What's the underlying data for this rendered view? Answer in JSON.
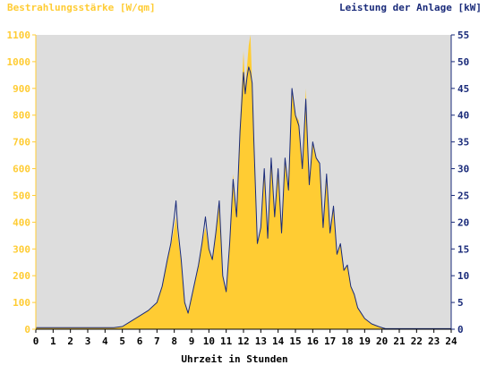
{
  "chart_data": {
    "type": "area",
    "left_axis_label": "Bestrahlungsstärke [W/qm]",
    "right_axis_label": "Leistung der Anlage [kW]",
    "xlabel": "Uhrzeit in Stunden",
    "x_ticks": [
      "0",
      "1",
      "2",
      "3",
      "4",
      "5",
      "6",
      "7",
      "8",
      "9",
      "10",
      "11",
      "12",
      "13",
      "14",
      "15",
      "16",
      "17",
      "18",
      "19",
      "20",
      "21",
      "22",
      "23",
      "24"
    ],
    "y_left_ticks": [
      "0",
      "100",
      "200",
      "300",
      "400",
      "500",
      "600",
      "700",
      "800",
      "900",
      "1000",
      "1100"
    ],
    "y_right_ticks": [
      "0",
      "5",
      "10",
      "15",
      "20",
      "25",
      "30",
      "35",
      "40",
      "45",
      "50",
      "55"
    ],
    "xlim": [
      0,
      24
    ],
    "ylim_left": [
      0,
      1100
    ],
    "ylim_right": [
      0,
      55
    ],
    "grid": false,
    "series": [
      {
        "name": "Bestrahlungsstärke",
        "axis": "left",
        "style": "filled-area",
        "color": "#ffcc33",
        "x": [
          0,
          4.5,
          5,
          5.5,
          6,
          6.5,
          7,
          7.3,
          7.6,
          7.8,
          8.0,
          8.1,
          8.2,
          8.4,
          8.6,
          8.8,
          9.0,
          9.2,
          9.4,
          9.6,
          9.8,
          10.0,
          10.2,
          10.4,
          10.6,
          10.8,
          11.0,
          11.2,
          11.4,
          11.6,
          11.8,
          12.0,
          12.1,
          12.2,
          12.3,
          12.4,
          12.5,
          12.6,
          12.8,
          13.0,
          13.2,
          13.4,
          13.6,
          13.8,
          14.0,
          14.2,
          14.4,
          14.6,
          14.8,
          15.0,
          15.2,
          15.4,
          15.6,
          15.8,
          16.0,
          16.2,
          16.4,
          16.6,
          16.8,
          17.0,
          17.2,
          17.4,
          17.6,
          17.8,
          18.0,
          18.2,
          18.4,
          18.6,
          18.8,
          19.0,
          19.4,
          19.8,
          20.0,
          20.2,
          24
        ],
        "y": [
          5,
          5,
          10,
          30,
          50,
          70,
          100,
          160,
          260,
          310,
          380,
          420,
          350,
          250,
          100,
          60,
          120,
          180,
          240,
          320,
          380,
          300,
          260,
          360,
          480,
          200,
          150,
          320,
          580,
          420,
          760,
          1040,
          900,
          980,
          1060,
          1100,
          920,
          700,
          320,
          380,
          600,
          350,
          640,
          420,
          600,
          360,
          640,
          520,
          900,
          800,
          780,
          600,
          900,
          540,
          700,
          640,
          620,
          380,
          580,
          360,
          460,
          280,
          320,
          220,
          240,
          160,
          130,
          80,
          60,
          40,
          20,
          10,
          5,
          2,
          2
        ]
      },
      {
        "name": "Leistung der Anlage",
        "axis": "right",
        "style": "line",
        "color": "#1a2b7a",
        "x": [
          0,
          4.5,
          5,
          5.5,
          6,
          6.5,
          7,
          7.3,
          7.6,
          7.8,
          8.0,
          8.1,
          8.2,
          8.4,
          8.6,
          8.8,
          9.0,
          9.2,
          9.4,
          9.6,
          9.8,
          10.0,
          10.2,
          10.4,
          10.6,
          10.8,
          11.0,
          11.2,
          11.4,
          11.6,
          11.8,
          12.0,
          12.1,
          12.2,
          12.3,
          12.4,
          12.5,
          12.6,
          12.8,
          13.0,
          13.2,
          13.4,
          13.6,
          13.8,
          14.0,
          14.2,
          14.4,
          14.6,
          14.8,
          15.0,
          15.2,
          15.4,
          15.6,
          15.8,
          16.0,
          16.2,
          16.4,
          16.6,
          16.8,
          17.0,
          17.2,
          17.4,
          17.6,
          17.8,
          18.0,
          18.2,
          18.4,
          18.6,
          18.8,
          19.0,
          19.4,
          19.8,
          20.0,
          20.2,
          24
        ],
        "y": [
          0.3,
          0.3,
          0.5,
          1.5,
          2.5,
          3.5,
          5,
          8,
          13,
          16,
          21,
          24,
          19,
          13,
          5,
          3,
          6,
          9,
          12,
          16,
          21,
          15,
          13,
          18,
          24,
          10,
          7,
          16,
          28,
          21,
          37,
          48,
          44,
          47,
          49,
          48,
          46,
          35,
          16,
          19,
          30,
          17,
          32,
          21,
          30,
          18,
          32,
          26,
          45,
          40,
          38,
          30,
          43,
          27,
          35,
          32,
          31,
          19,
          29,
          18,
          23,
          14,
          16,
          11,
          12,
          8,
          6.5,
          4,
          3,
          2,
          1,
          0.5,
          0.3,
          0.1,
          0.1
        ]
      }
    ],
    "colors": {
      "plot_background": "#dddddd",
      "left_axis_text": "#ffcc33",
      "right_axis_text": "#1a2b7a",
      "x_axis_text": "#000000"
    }
  }
}
